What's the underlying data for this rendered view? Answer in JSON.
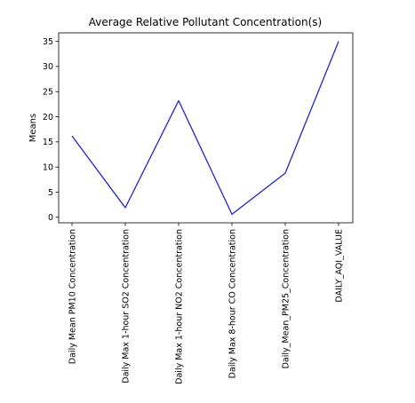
{
  "chart_data": {
    "type": "line",
    "title": "Average Relative Pollutant Concentration(s)",
    "xlabel": "",
    "ylabel": "Means",
    "categories": [
      "Daily Mean PM10 Concentration",
      "Daily Max 1-hour SO2 Concentration",
      "Daily Max 1-hour NO2 Concentration",
      "Daily Max 8-hour CO Concentration",
      "Daily_Mean_PM25_Concentration",
      "DAILY_AQI_VALUE"
    ],
    "series": [
      {
        "values": [
          16.2,
          1.9,
          23.2,
          0.6,
          8.8,
          35.0
        ],
        "color": "#2323cc"
      }
    ],
    "yticks": [
      0,
      5,
      10,
      15,
      20,
      25,
      30,
      35
    ],
    "ylim": [
      -1.1,
      36.7
    ],
    "grid": false
  }
}
